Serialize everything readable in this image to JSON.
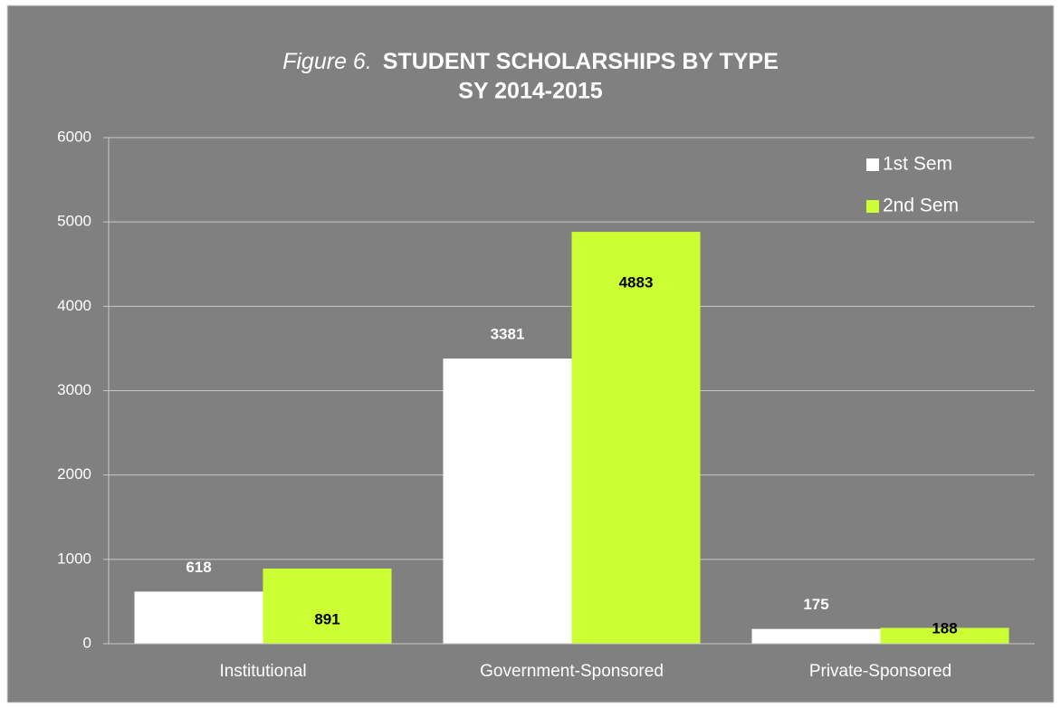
{
  "chart_data": {
    "type": "bar",
    "title": [
      "Figure 6.",
      "STUDENT SCHOLARSHIPS BY TYPE"
    ],
    "subtitle": "SY 2014-2015",
    "categories": [
      "Institutional",
      "Government-Sponsored",
      "Private-Sponsored"
    ],
    "series": [
      {
        "name": "1st Sem",
        "color": "#ffffff",
        "values": [
          618,
          3381,
          175
        ]
      },
      {
        "name": "2nd Sem",
        "color": "#ccff33",
        "values": [
          891,
          4883,
          188
        ]
      }
    ],
    "ylim": [
      0,
      6000
    ],
    "yticks": [
      0,
      1000,
      2000,
      3000,
      4000,
      5000,
      6000
    ],
    "grid": true,
    "legend": "top-right"
  }
}
